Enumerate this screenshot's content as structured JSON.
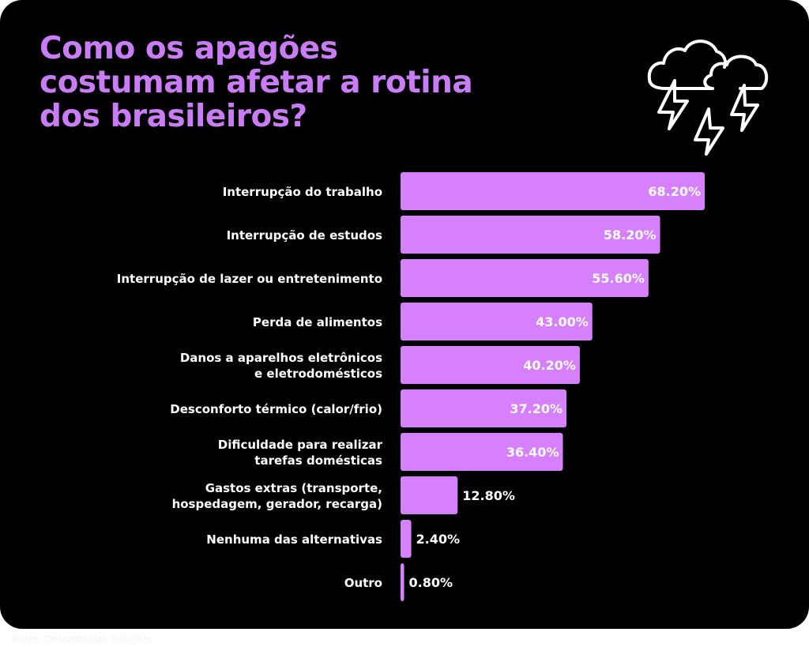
{
  "chart_data": {
    "type": "bar",
    "orientation": "horizontal",
    "title": "Como os apagões costumam afetar a rotina dos brasileiros?",
    "categories": [
      "Interrupção do trabalho",
      "Interrupção de estudos",
      "Interrupção de lazer ou entretenimento",
      "Perda de alimentos",
      "Danos a aparelhos eletrônicos\ne eletrodomésticos",
      "Desconforto térmico (calor/frio)",
      "Dificuldade para realizar\ntarefas domésticas",
      "Gastos extras (transporte,\nhospedagem, gerador, recarga)",
      "Nenhuma das alternativas",
      "Outro"
    ],
    "values": [
      68.2,
      58.2,
      55.6,
      43.0,
      40.2,
      37.2,
      36.4,
      12.8,
      2.4,
      0.8
    ],
    "labels": [
      "68.20%",
      "58.20%",
      "55.60%",
      "43.00%",
      "40.20%",
      "37.20%",
      "36.40%",
      "12.80%",
      "2.40%",
      "0.80%"
    ],
    "unit": "%",
    "xlim": [
      0,
      100
    ],
    "grid": false,
    "colors": {
      "bar": "#d680fd",
      "title": "#c97cf5",
      "background": "#000000",
      "text": "#ffffff"
    }
  },
  "icon": "storm-clouds-lightning-icon",
  "source": "Fonte: Descarbonize Soluções"
}
